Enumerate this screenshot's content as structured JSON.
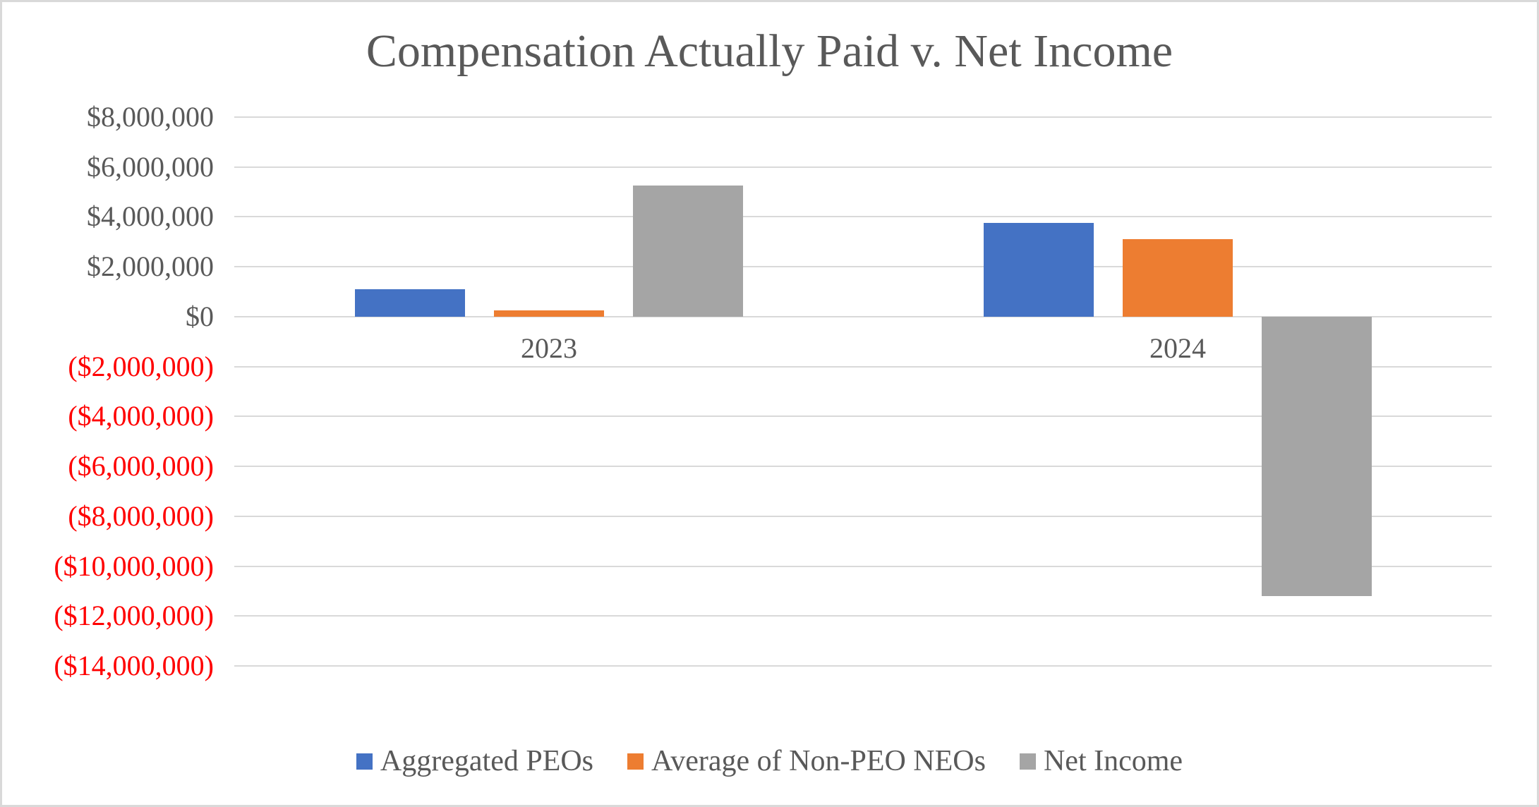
{
  "window": {
    "background": "#FFFFFF",
    "border_color": "#D9D9D9"
  },
  "chart_data": {
    "type": "bar",
    "title": "Compensation Actually Paid v. Net Income",
    "categories": [
      "2023",
      "2024"
    ],
    "series": [
      {
        "name": "Aggregated PEOs",
        "color": "#4472C4",
        "values": [
          1100000,
          3750000
        ]
      },
      {
        "name": "Average of Non-PEO NEOs",
        "color": "#ED7D31",
        "values": [
          250000,
          3100000
        ]
      },
      {
        "name": "Net Income",
        "color": "#A5A5A5",
        "values": [
          5250000,
          -11200000
        ]
      }
    ],
    "y_axis": {
      "min": -14000000,
      "max": 8000000,
      "step": 2000000,
      "tick_labels": [
        "$8,000,000",
        "$6,000,000",
        "$4,000,000",
        "$2,000,000",
        "$0",
        "($2,000,000)",
        "($4,000,000)",
        "($6,000,000)",
        "($8,000,000)",
        "($10,000,000)",
        "($12,000,000)",
        "($14,000,000)"
      ],
      "positive_label_color": "#595959",
      "negative_label_color": "#FF0000",
      "grid": true,
      "gridline_color": "#D9D9D9"
    },
    "legend": {
      "position": "bottom",
      "entries": [
        "Aggregated PEOs",
        "Average of Non-PEO NEOs",
        "Net Income"
      ]
    },
    "text_color": "#595959"
  }
}
